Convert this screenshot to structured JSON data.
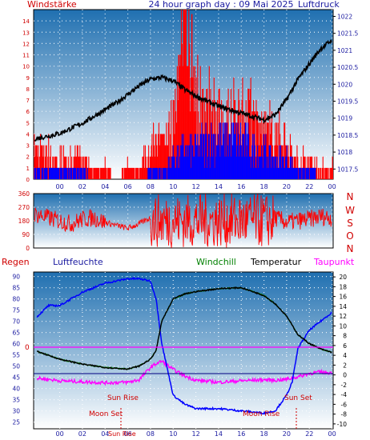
{
  "colors": {
    "panel_top": "#1f6fb0",
    "panel_bottom": "#ffffff",
    "red": "#ff0000",
    "blue": "#0000ff",
    "black": "#000000",
    "magenta": "#ff00ff",
    "green": "#008000",
    "dotgrid": "#ffffff",
    "label_red": "#d00000",
    "label_blue": "#1a1aa0",
    "hline": "#000080"
  },
  "header": {
    "left": "Windstärke",
    "center": "24 hour graph day : 09 Mai 2025",
    "right": "Luftdruck"
  },
  "legend2": {
    "regen": "Regen",
    "luftfeuchte": "Luftfeuchte",
    "windchill": "Windchill",
    "temperatur": "Temperatur",
    "taupunkt": "Taupunkt"
  },
  "direction_letters": [
    "N",
    "W",
    "S",
    "O",
    "N"
  ],
  "annotations": {
    "sun_rise": "Sun Rise",
    "sun_set": "Sun Set",
    "moon_set": "Moon Set",
    "moon_rise": "Moon Rise",
    "sun_rise_x": "Sun Rise",
    "zero_mark": "0"
  },
  "chart_data": [
    {
      "type": "line",
      "title": "24 hour graph day : 09 Mai 2025",
      "x_tick_labels": [
        "00",
        "02",
        "04",
        "06",
        "08",
        "10",
        "12",
        "14",
        "16",
        "18",
        "20",
        "22",
        "00"
      ],
      "x_hours": [
        0,
        2,
        4,
        6,
        8,
        10,
        12,
        14,
        16,
        18,
        20,
        22,
        24
      ],
      "y_left_label": "Windstärke",
      "y_left_ticks": [
        "0",
        "1",
        "2",
        "3",
        "4",
        "5",
        "6",
        "7",
        "8",
        "9",
        "10",
        "11",
        "12",
        "13",
        "14"
      ],
      "y_left_range": [
        0,
        15
      ],
      "y_right_label": "Luftdruck",
      "y_right_ticks": [
        "1017.5",
        "1018",
        "1018.5",
        "1019",
        "1019.5",
        "1020",
        "1020.5",
        "1021",
        "1021.5",
        "1022"
      ],
      "y_right_range": [
        1017.2,
        1022.2
      ],
      "grid": true,
      "series": [
        {
          "name": "Luftdruck",
          "color": "#000000",
          "x": [
            -2,
            0,
            1,
            2,
            3,
            4,
            5,
            6,
            7,
            8,
            9,
            10,
            11,
            12,
            13,
            14,
            15,
            16,
            17,
            18,
            19,
            20,
            21,
            22,
            23,
            24
          ],
          "y": [
            1018.4,
            1018.55,
            1018.7,
            1018.85,
            1019.05,
            1019.25,
            1019.45,
            1019.7,
            1019.95,
            1020.15,
            1020.2,
            1020.1,
            1019.85,
            1019.65,
            1019.5,
            1019.35,
            1019.25,
            1019.15,
            1019.05,
            1018.95,
            1019.1,
            1019.55,
            1020.15,
            1020.6,
            1021.05,
            1021.3
          ]
        },
        {
          "name": "Windgeschwindigkeit",
          "color": "#0000ff",
          "x": [
            -2,
            0,
            1,
            2,
            3,
            4,
            5,
            6,
            7,
            8,
            9,
            10,
            11,
            12,
            13,
            14,
            15,
            16,
            17,
            18,
            19,
            20,
            21,
            22,
            23,
            24
          ],
          "y": [
            1,
            1,
            1,
            1,
            0,
            0,
            0,
            0,
            0,
            1,
            1,
            2,
            3,
            3,
            4,
            4,
            4,
            4,
            3,
            3,
            2,
            2,
            1,
            1,
            0,
            0
          ]
        },
        {
          "name": "Windböen",
          "color": "#ff0000",
          "x": [
            -2,
            0,
            1,
            2,
            3,
            4,
            5,
            6,
            7,
            8,
            9,
            10,
            11,
            12,
            13,
            14,
            15,
            16,
            17,
            18,
            19,
            20,
            21,
            22,
            23,
            24
          ],
          "y": [
            3,
            2,
            2,
            2,
            1,
            1,
            0,
            1,
            1,
            3,
            4,
            6,
            14,
            8,
            7,
            7,
            6,
            6,
            6,
            5,
            4,
            3,
            2,
            2,
            1,
            1
          ]
        }
      ]
    },
    {
      "type": "scatter",
      "y_ticks": [
        "0",
        "90",
        "180",
        "270",
        "360"
      ],
      "y_range": [
        0,
        360
      ],
      "series": [
        {
          "name": "Windrichtung",
          "color": "#ff0000",
          "x": [
            -2,
            0,
            1,
            2,
            3,
            4,
            5,
            6,
            7,
            8,
            9,
            10,
            11,
            12,
            13,
            14,
            15,
            16,
            17,
            18,
            19,
            20,
            21,
            22,
            23,
            24
          ],
          "y": [
            220,
            180,
            160,
            190,
            200,
            170,
            150,
            130,
            160,
            200,
            190,
            180,
            180,
            170,
            190,
            200,
            180,
            170,
            180,
            190,
            200,
            170,
            180,
            190,
            210,
            200
          ]
        }
      ]
    },
    {
      "type": "line",
      "y_left_ticks": [
        "25",
        "30",
        "35",
        "40",
        "45",
        "50",
        "55",
        "60",
        "65",
        "70",
        "75",
        "80",
        "85",
        "90"
      ],
      "y_left_range": [
        22,
        92
      ],
      "y_right_ticks": [
        "-10",
        "-8",
        "-6",
        "-4",
        "-2",
        "0",
        "2",
        "4",
        "6",
        "8",
        "10",
        "12",
        "14",
        "16",
        "18",
        "20"
      ],
      "y_right_range": [
        -11,
        21
      ],
      "series": [
        {
          "name": "Luftfeuchte",
          "color": "#0000ff",
          "x": [
            -2,
            -1,
            0,
            2,
            4,
            6,
            7,
            8,
            8.5,
            9,
            10,
            11,
            12,
            14,
            16,
            18,
            19,
            20,
            20.5,
            21,
            22,
            23,
            24
          ],
          "y": [
            72,
            77,
            77,
            83,
            87,
            89,
            89,
            88,
            80,
            60,
            37,
            33,
            31,
            31,
            30,
            29,
            30,
            37,
            43,
            58,
            66,
            70,
            74
          ]
        },
        {
          "name": "Temperatur",
          "color": "#000000",
          "x": [
            -2,
            0,
            2,
            4,
            6,
            7,
            8,
            8.5,
            9,
            10,
            11,
            12,
            14,
            16,
            18,
            19,
            20,
            21,
            22,
            23,
            24
          ],
          "y": [
            4.8,
            3.2,
            2.2,
            1.5,
            1.2,
            1.8,
            3.2,
            5,
            11,
            15.5,
            16.5,
            17,
            17.6,
            17.8,
            16.2,
            14.5,
            12,
            8.2,
            6.4,
            5.3,
            4.6
          ]
        },
        {
          "name": "Windchill",
          "color": "#008000",
          "x": [
            -2,
            0,
            2,
            4,
            6,
            7,
            8,
            8.5,
            9,
            10,
            11,
            12,
            14,
            16,
            18,
            19,
            20,
            21,
            22,
            23,
            24
          ],
          "y": [
            4.8,
            3.2,
            2.2,
            1.5,
            1.2,
            1.8,
            3.2,
            5,
            11,
            15.5,
            16.5,
            17,
            17.6,
            17.8,
            16.2,
            14.5,
            12,
            8.2,
            6.4,
            5.3,
            4.6
          ]
        },
        {
          "name": "Taupunkt",
          "color": "#ff00ff",
          "x": [
            -2,
            -1,
            0,
            2,
            4,
            6,
            7,
            8,
            8.5,
            9,
            10,
            11,
            12,
            14,
            16,
            18,
            19,
            20,
            21,
            22,
            23,
            24
          ],
          "y": [
            -0.7,
            -0.9,
            -1.2,
            -1.4,
            -1.6,
            -1.5,
            -1,
            1.5,
            2.3,
            2.8,
            1.1,
            -0.2,
            -1.1,
            -1.5,
            -1.2,
            -1,
            -1.1,
            -0.9,
            -0.4,
            0.3,
            0.6,
            0.4
          ]
        }
      ]
    }
  ]
}
